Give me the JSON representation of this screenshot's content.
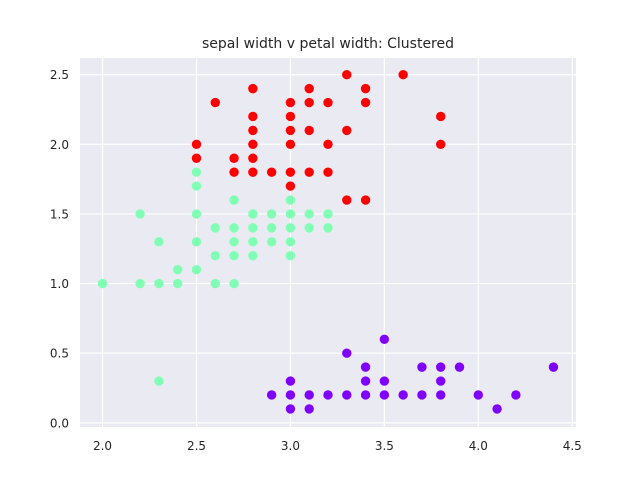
{
  "chart_data": {
    "type": "scatter",
    "title": "sepal width v petal width: Clustered",
    "xlabel": "",
    "ylabel": "",
    "xlim": [
      1.88,
      4.52
    ],
    "ylim": [
      -0.03,
      2.62
    ],
    "xticks": [
      "2.0",
      "2.5",
      "3.0",
      "3.5",
      "4.0",
      "4.5"
    ],
    "yticks": [
      "0.0",
      "0.5",
      "1.0",
      "1.5",
      "2.0",
      "2.5"
    ],
    "grid": true,
    "background": "#eaeaf2",
    "series": [
      {
        "color": "#8000ff",
        "points": [
          [
            2.9,
            0.2
          ],
          [
            3.0,
            0.1
          ],
          [
            3.0,
            0.2
          ],
          [
            3.0,
            0.3
          ],
          [
            3.1,
            0.1
          ],
          [
            3.1,
            0.2
          ],
          [
            3.2,
            0.2
          ],
          [
            3.3,
            0.2
          ],
          [
            3.3,
            0.5
          ],
          [
            3.4,
            0.2
          ],
          [
            3.4,
            0.3
          ],
          [
            3.4,
            0.4
          ],
          [
            3.5,
            0.2
          ],
          [
            3.5,
            0.3
          ],
          [
            3.5,
            0.6
          ],
          [
            3.6,
            0.2
          ],
          [
            3.7,
            0.2
          ],
          [
            3.7,
            0.4
          ],
          [
            3.8,
            0.2
          ],
          [
            3.8,
            0.3
          ],
          [
            3.8,
            0.4
          ],
          [
            3.9,
            0.4
          ],
          [
            4.0,
            0.2
          ],
          [
            4.1,
            0.1
          ],
          [
            4.2,
            0.2
          ],
          [
            4.4,
            0.4
          ]
        ]
      },
      {
        "color": "#80ffb4",
        "points": [
          [
            2.0,
            1.0
          ],
          [
            2.2,
            1.0
          ],
          [
            2.2,
            1.5
          ],
          [
            2.3,
            0.3
          ],
          [
            2.3,
            1.0
          ],
          [
            2.3,
            1.3
          ],
          [
            2.4,
            1.0
          ],
          [
            2.4,
            1.1
          ],
          [
            2.5,
            1.1
          ],
          [
            2.5,
            1.3
          ],
          [
            2.5,
            1.5
          ],
          [
            2.5,
            1.7
          ],
          [
            2.5,
            1.8
          ],
          [
            2.6,
            1.0
          ],
          [
            2.6,
            1.2
          ],
          [
            2.6,
            1.4
          ],
          [
            2.7,
            1.0
          ],
          [
            2.7,
            1.2
          ],
          [
            2.7,
            1.3
          ],
          [
            2.7,
            1.4
          ],
          [
            2.7,
            1.6
          ],
          [
            2.8,
            1.2
          ],
          [
            2.8,
            1.3
          ],
          [
            2.8,
            1.4
          ],
          [
            2.8,
            1.5
          ],
          [
            2.9,
            1.3
          ],
          [
            2.9,
            1.4
          ],
          [
            2.9,
            1.5
          ],
          [
            3.0,
            1.2
          ],
          [
            3.0,
            1.3
          ],
          [
            3.0,
            1.4
          ],
          [
            3.0,
            1.5
          ],
          [
            3.0,
            1.6
          ],
          [
            3.1,
            1.4
          ],
          [
            3.1,
            1.5
          ],
          [
            3.2,
            1.4
          ],
          [
            3.2,
            1.5
          ]
        ]
      },
      {
        "color": "#ff0000",
        "points": [
          [
            2.5,
            1.9
          ],
          [
            2.5,
            2.0
          ],
          [
            2.6,
            2.3
          ],
          [
            2.7,
            1.8
          ],
          [
            2.7,
            1.9
          ],
          [
            2.8,
            1.8
          ],
          [
            2.8,
            1.9
          ],
          [
            2.8,
            2.0
          ],
          [
            2.8,
            2.1
          ],
          [
            2.8,
            2.2
          ],
          [
            2.8,
            2.4
          ],
          [
            2.9,
            1.8
          ],
          [
            3.0,
            1.7
          ],
          [
            3.0,
            1.8
          ],
          [
            3.0,
            2.0
          ],
          [
            3.0,
            2.1
          ],
          [
            3.0,
            2.2
          ],
          [
            3.0,
            2.3
          ],
          [
            3.1,
            1.8
          ],
          [
            3.1,
            2.1
          ],
          [
            3.1,
            2.3
          ],
          [
            3.1,
            2.4
          ],
          [
            3.2,
            1.8
          ],
          [
            3.2,
            2.0
          ],
          [
            3.2,
            2.3
          ],
          [
            3.3,
            1.6
          ],
          [
            3.3,
            2.1
          ],
          [
            3.3,
            2.5
          ],
          [
            3.4,
            1.6
          ],
          [
            3.4,
            2.3
          ],
          [
            3.4,
            2.4
          ],
          [
            3.6,
            2.5
          ],
          [
            3.8,
            2.0
          ],
          [
            3.8,
            2.2
          ]
        ]
      }
    ]
  }
}
